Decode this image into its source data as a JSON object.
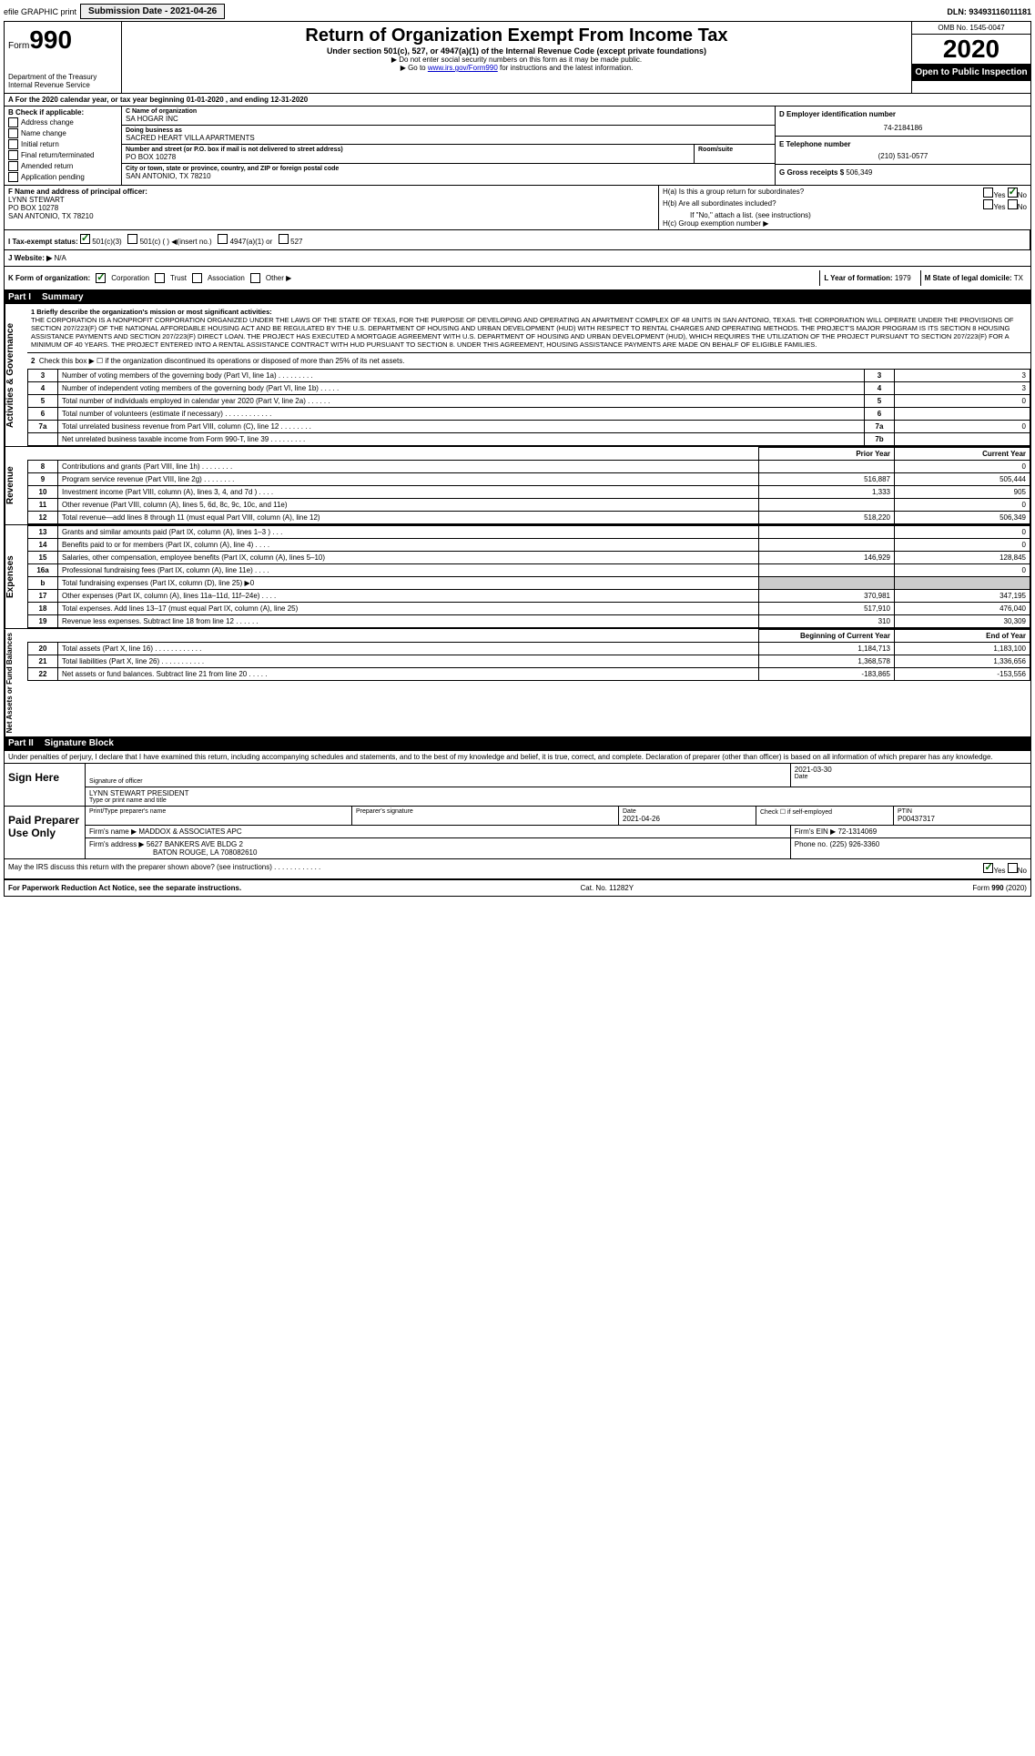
{
  "topbar": {
    "efile": "efile GRAPHIC print",
    "submission_label": "Submission Date - 2021-04-26",
    "dln": "DLN: 93493116011181"
  },
  "header": {
    "form_label": "Form",
    "form_number": "990",
    "dept": "Department of the Treasury\nInternal Revenue Service",
    "title": "Return of Organization Exempt From Income Tax",
    "subtitle": "Under section 501(c), 527, or 4947(a)(1) of the Internal Revenue Code (except private foundations)",
    "note1": "▶ Do not enter social security numbers on this form as it may be made public.",
    "note2": "▶ Go to www.irs.gov/Form990 for instructions and the latest information.",
    "omb": "OMB No. 1545-0047",
    "year": "2020",
    "open_public": "Open to Public Inspection"
  },
  "row_a": "A For the 2020 calendar year, or tax year beginning 01-01-2020    , and ending 12-31-2020",
  "col_b": {
    "title": "B Check if applicable:",
    "items": [
      "Address change",
      "Name change",
      "Initial return",
      "Final return/terminated",
      "Amended return",
      "Application pending"
    ]
  },
  "col_c": {
    "name_label": "C Name of organization",
    "name": "SA HOGAR INC",
    "dba_label": "Doing business as",
    "dba": "SACRED HEART VILLA APARTMENTS",
    "street_label": "Number and street (or P.O. box if mail is not delivered to street address)",
    "street": "PO BOX 10278",
    "room_label": "Room/suite",
    "city_label": "City or town, state or province, country, and ZIP or foreign postal code",
    "city": "SAN ANTONIO, TX  78210"
  },
  "col_d": {
    "label": "D Employer identification number",
    "value": "74-2184186"
  },
  "col_e": {
    "label": "E Telephone number",
    "value": "(210) 531-0577"
  },
  "col_g": {
    "label": "G Gross receipts $",
    "value": "506,349"
  },
  "col_f": {
    "label": "F Name and address of principal officer:",
    "name": "LYNN STEWART",
    "street": "PO BOX 10278",
    "city": "SAN ANTONIO, TX  78210"
  },
  "col_h": {
    "ha": "H(a) Is this a group return for subordinates?",
    "hb": "H(b) Are all subordinates included?",
    "hb_note": "If \"No,\" attach a list. (see instructions)",
    "hc": "H(c) Group exemption number ▶"
  },
  "row_i": {
    "label": "I   Tax-exempt status:",
    "opts": [
      "501(c)(3)",
      "501(c) (  ) ◀(insert no.)",
      "4947(a)(1) or",
      "527"
    ]
  },
  "row_j": {
    "label": "J   Website: ▶",
    "value": "N/A"
  },
  "row_k": {
    "label": "K Form of organization:",
    "opts": [
      "Corporation",
      "Trust",
      "Association",
      "Other ▶"
    ]
  },
  "row_l": {
    "label": "L Year of formation:",
    "value": "1979"
  },
  "row_m": {
    "label": "M State of legal domicile:",
    "value": "TX"
  },
  "part1": {
    "title": "Part I",
    "name": "Summary",
    "line1_label": "1  Briefly describe the organization's mission or most significant activities:",
    "mission": "THE CORPORATION IS A NONPROFIT CORPORATION ORGANIZED UNDER THE LAWS OF THE STATE OF TEXAS, FOR THE PURPOSE OF DEVELOPING AND OPERATING AN APARTMENT COMPLEX OF 48 UNITS IN SAN ANTONIO, TEXAS. THE CORPORATION WILL OPERATE UNDER THE PROVISIONS OF SECTION 207/223(F) OF THE NATIONAL AFFORDABLE HOUSING ACT AND BE REGULATED BY THE U.S. DEPARTMENT OF HOUSING AND URBAN DEVELOPMENT (HUD) WITH RESPECT TO RENTAL CHARGES AND OPERATING METHODS. THE PROJECT'S MAJOR PROGRAM IS ITS SECTION 8 HOUSING ASSISTANCE PAYMENTS AND SECTION 207/223(F) DIRECT LOAN. THE PROJECT HAS EXECUTED A MORTGAGE AGREEMENT WITH U.S. DEPARTMENT OF HOUSING AND URBAN DEVELOPMENT (HUD), WHICH REQUIRES THE UTILIZATION OF THE PROJECT PURSUANT TO SECTION 207/223(F) FOR A MINIMUM OF 40 YEARS. THE PROJECT ENTERED INTO A RENTAL ASSISTANCE CONTRACT WITH HUD PURSUANT TO SECTION 8. UNDER THIS AGREEMENT, HOUSING ASSISTANCE PAYMENTS ARE MADE ON BEHALF OF ELIGIBLE FAMILIES.",
    "vtab1": "Activities & Governance",
    "line2": "Check this box ▶ ☐ if the organization discontinued its operations or disposed of more than 25% of its net assets.",
    "lines_ag": [
      {
        "n": "3",
        "desc": "Number of voting members of the governing body (Part VI, line 1a)  .   .   .   .   .   .   .   .   .",
        "lbl": "3",
        "val": "3"
      },
      {
        "n": "4",
        "desc": "Number of independent voting members of the governing body (Part VI, line 1b)   .   .   .   .   .",
        "lbl": "4",
        "val": "3"
      },
      {
        "n": "5",
        "desc": "Total number of individuals employed in calendar year 2020 (Part V, line 2a)  .   .   .   .   .   .",
        "lbl": "5",
        "val": "0"
      },
      {
        "n": "6",
        "desc": "Total number of volunteers (estimate if necessary)  .   .   .   .   .   .   .   .   .   .   .   .",
        "lbl": "6",
        "val": ""
      },
      {
        "n": "7a",
        "desc": "Total unrelated business revenue from Part VIII, column (C), line 12  .   .   .   .   .   .   .   .",
        "lbl": "7a",
        "val": "0"
      },
      {
        "n": "",
        "desc": "Net unrelated business taxable income from Form 990-T, line 39   .   .   .   .   .   .   .   .   .",
        "lbl": "7b",
        "val": ""
      }
    ],
    "hdr_prior": "Prior Year",
    "hdr_current": "Current Year",
    "vtab2": "Revenue",
    "lines_rev": [
      {
        "n": "8",
        "desc": "Contributions and grants (Part VIII, line 1h)   .   .   .   .   .   .   .   .",
        "p": "",
        "c": "0"
      },
      {
        "n": "9",
        "desc": "Program service revenue (Part VIII, line 2g)   .   .   .   .   .   .   .   .",
        "p": "516,887",
        "c": "505,444"
      },
      {
        "n": "10",
        "desc": "Investment income (Part VIII, column (A), lines 3, 4, and 7d )   .   .   .   .",
        "p": "1,333",
        "c": "905"
      },
      {
        "n": "11",
        "desc": "Other revenue (Part VIII, column (A), lines 5, 6d, 8c, 9c, 10c, and 11e)",
        "p": "",
        "c": "0"
      },
      {
        "n": "12",
        "desc": "Total revenue—add lines 8 through 11 (must equal Part VIII, column (A), line 12)",
        "p": "518,220",
        "c": "506,349"
      }
    ],
    "vtab3": "Expenses",
    "lines_exp": [
      {
        "n": "13",
        "desc": "Grants and similar amounts paid (Part IX, column (A), lines 1–3 )  .   .   .",
        "p": "",
        "c": "0"
      },
      {
        "n": "14",
        "desc": "Benefits paid to or for members (Part IX, column (A), line 4)  .   .   .   .",
        "p": "",
        "c": "0"
      },
      {
        "n": "15",
        "desc": "Salaries, other compensation, employee benefits (Part IX, column (A), lines 5–10)",
        "p": "146,929",
        "c": "128,845"
      },
      {
        "n": "16a",
        "desc": "Professional fundraising fees (Part IX, column (A), line 11e)  .   .   .   .",
        "p": "",
        "c": "0"
      },
      {
        "n": "b",
        "desc": "Total fundraising expenses (Part IX, column (D), line 25) ▶0",
        "p": "GREY",
        "c": "GREY"
      },
      {
        "n": "17",
        "desc": "Other expenses (Part IX, column (A), lines 11a–11d, 11f–24e)  .   .   .   .",
        "p": "370,981",
        "c": "347,195"
      },
      {
        "n": "18",
        "desc": "Total expenses. Add lines 13–17 (must equal Part IX, column (A), line 25)",
        "p": "517,910",
        "c": "476,040"
      },
      {
        "n": "19",
        "desc": "Revenue less expenses. Subtract line 18 from line 12  .   .   .   .   .   .",
        "p": "310",
        "c": "30,309"
      }
    ],
    "hdr_begin": "Beginning of Current Year",
    "hdr_end": "End of Year",
    "vtab4": "Net Assets or Fund Balances",
    "lines_na": [
      {
        "n": "20",
        "desc": "Total assets (Part X, line 16)  .   .   .   .   .   .   .   .   .   .   .   .",
        "p": "1,184,713",
        "c": "1,183,100"
      },
      {
        "n": "21",
        "desc": "Total liabilities (Part X, line 26)  .   .   .   .   .   .   .   .   .   .   .",
        "p": "1,368,578",
        "c": "1,336,656"
      },
      {
        "n": "22",
        "desc": "Net assets or fund balances. Subtract line 21 from line 20  .   .   .   .   .",
        "p": "-183,865",
        "c": "-153,556"
      }
    ]
  },
  "part2": {
    "title": "Part II",
    "name": "Signature Block",
    "declaration": "Under penalties of perjury, I declare that I have examined this return, including accompanying schedules and statements, and to the best of my knowledge and belief, it is true, correct, and complete. Declaration of preparer (other than officer) is based on all information of which preparer has any knowledge.",
    "sign_here": "Sign Here",
    "sig_officer": "Signature of officer",
    "date": "2021-03-30",
    "date_label": "Date",
    "officer_name": "LYNN STEWART PRESIDENT",
    "officer_label": "Type or print name and title",
    "paid": "Paid Preparer Use Only",
    "prep_name_label": "Print/Type preparer's name",
    "prep_sig_label": "Preparer's signature",
    "prep_date_label": "Date",
    "prep_date": "2021-04-26",
    "check_label": "Check ☐ if self-employed",
    "ptin_label": "PTIN",
    "ptin": "P00437317",
    "firm_name_label": "Firm's name    ▶",
    "firm_name": "MADDOX & ASSOCIATES APC",
    "firm_ein_label": "Firm's EIN ▶",
    "firm_ein": "72-1314069",
    "firm_addr_label": "Firm's address ▶",
    "firm_addr1": "5627 BANKERS AVE BLDG 2",
    "firm_addr2": "BATON ROUGE, LA  708082610",
    "phone_label": "Phone no.",
    "phone": "(225) 926-3360",
    "discuss": "May the IRS discuss this return with the preparer shown above? (see instructions)   .   .   .   .   .   .   .   .   .   .   .   ."
  },
  "footer": {
    "pra": "For Paperwork Reduction Act Notice, see the separate instructions.",
    "cat": "Cat. No. 11282Y",
    "form": "Form 990 (2020)"
  }
}
